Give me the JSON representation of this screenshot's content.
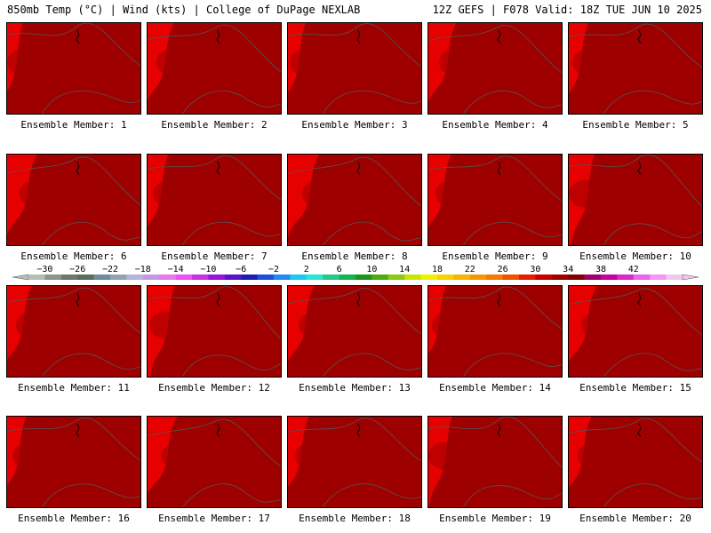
{
  "header": {
    "left": "850mb Temp (°C) | Wind (kts) | College of DuPage NEXLAB",
    "right": "12Z GEFS | F078 Valid: 18Z TUE JUN 10 2025"
  },
  "panels": [
    {
      "caption": "Ensemble Member: 1"
    },
    {
      "caption": "Ensemble Member: 2"
    },
    {
      "caption": "Ensemble Member: 3"
    },
    {
      "caption": "Ensemble Member: 4"
    },
    {
      "caption": "Ensemble Member: 5"
    },
    {
      "caption": "Ensemble Member: 6"
    },
    {
      "caption": "Ensemble Member: 7"
    },
    {
      "caption": "Ensemble Member: 8"
    },
    {
      "caption": "Ensemble Member: 9"
    },
    {
      "caption": "Ensemble Member: 10"
    },
    {
      "caption": "Ensemble Member: 11"
    },
    {
      "caption": "Ensemble Member: 12"
    },
    {
      "caption": "Ensemble Member: 13"
    },
    {
      "caption": "Ensemble Member: 14"
    },
    {
      "caption": "Ensemble Member: 15"
    },
    {
      "caption": "Ensemble Member: 16"
    },
    {
      "caption": "Ensemble Member: 17"
    },
    {
      "caption": "Ensemble Member: 18"
    },
    {
      "caption": "Ensemble Member: 19"
    },
    {
      "caption": "Ensemble Member: 20"
    }
  ],
  "colorbar": {
    "labels": [
      "−30",
      "−26",
      "−22",
      "−18",
      "−14",
      "−10",
      "−6",
      "−2",
      "2",
      "6",
      "10",
      "14",
      "18",
      "22",
      "26",
      "30",
      "34",
      "38",
      "42"
    ],
    "colors": [
      "#b4beb4",
      "#8c968c",
      "#6e786e",
      "#5a6e5a",
      "#6e8ca0",
      "#96a0b4",
      "#b4b4dc",
      "#c896e6",
      "#e678f0",
      "#f050f0",
      "#c832e6",
      "#9614dc",
      "#5a14c8",
      "#1e1eb4",
      "#1e50dc",
      "#1e8cf0",
      "#1ec8f0",
      "#28e6d2",
      "#28c88c",
      "#14b450",
      "#1e961e",
      "#50aa14",
      "#8cc814",
      "#c8e600",
      "#f0f000",
      "#f5d200",
      "#f5b400",
      "#f59600",
      "#f57800",
      "#f05000",
      "#e61e00",
      "#c80000",
      "#a00000",
      "#820000",
      "#a0006e",
      "#c800a0",
      "#dc28c8",
      "#ee64e6",
      "#f596f0",
      "#f0c8f0"
    ]
  },
  "map_colors": {
    "dark_red": "#9e0000",
    "red": "#c80000",
    "bright_red": "#e61e00",
    "red_orange": "#f05000",
    "orange": "#f57800",
    "orange2": "#f59600",
    "amber": "#f5b400",
    "gold": "#f5d200",
    "yellow": "#f0f000",
    "yellow_green": "#c8e600",
    "green": "#8cc814",
    "dark_green": "#50aa14"
  }
}
